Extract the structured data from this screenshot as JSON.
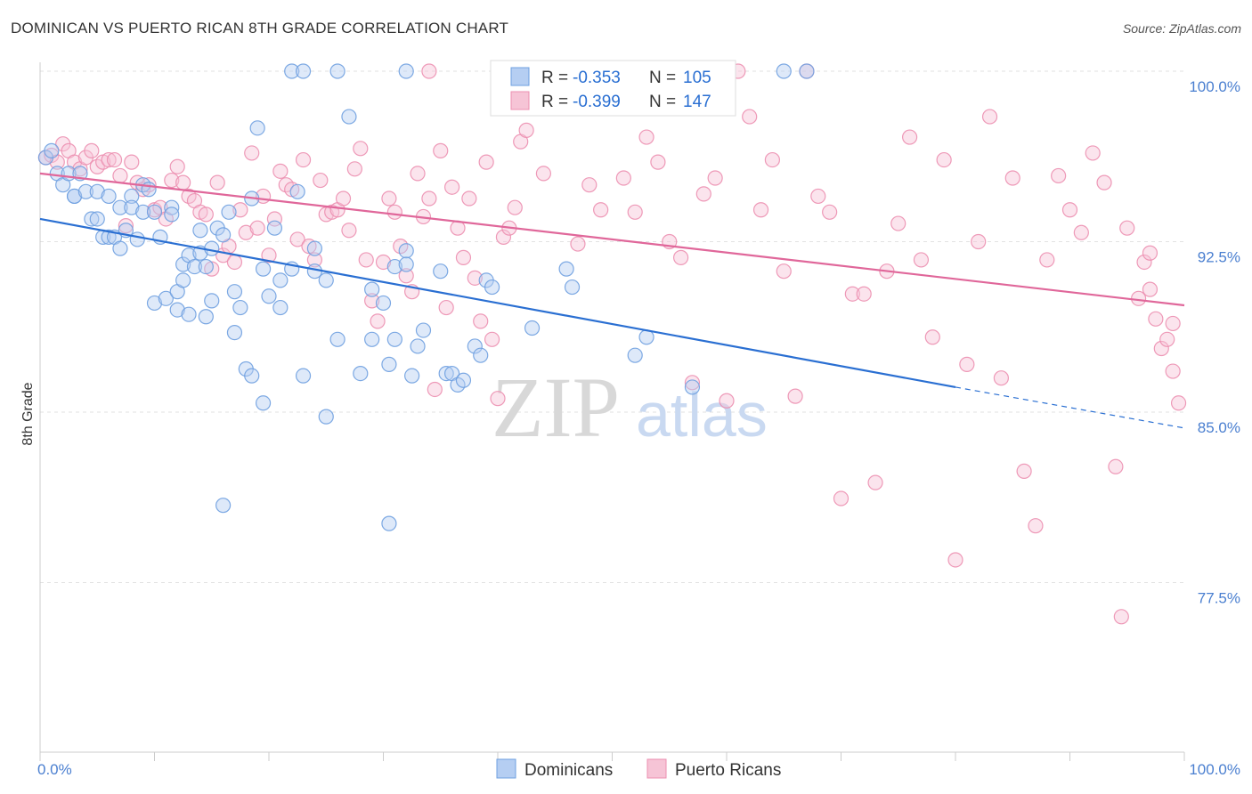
{
  "title": "DOMINICAN VS PUERTO RICAN 8TH GRADE CORRELATION CHART",
  "source": "Source: ZipAtlas.com",
  "watermark": {
    "zip": "ZIP",
    "atlas": "atlas"
  },
  "colors": {
    "blue": "#6fa0e0",
    "blue_fill": "#b5cef2",
    "blue_line": "#2a6fd2",
    "pink": "#ec8fb0",
    "pink_fill": "#f6c4d6",
    "pink_line": "#e0679a",
    "tick": "#4a7fd0"
  },
  "chart_data": {
    "type": "scatter",
    "title": "DOMINICAN VS PUERTO RICAN 8TH GRADE CORRELATION CHART",
    "xlabel": "",
    "ylabel": "8th Grade",
    "xlim": [
      0,
      100
    ],
    "ylim": [
      71.0,
      101.5
    ],
    "x_tick_labels": [
      "0.0%",
      "100.0%"
    ],
    "y_ticks": [
      {
        "value": 100.0,
        "label": "100.0%"
      },
      {
        "value": 92.5,
        "label": "92.5%"
      },
      {
        "value": 85.0,
        "label": "85.0%"
      },
      {
        "value": 77.5,
        "label": "77.5%"
      }
    ],
    "grid": true,
    "legend_position": "bottom",
    "stats_box": [
      {
        "series": "Dominicans",
        "r_label": "R =",
        "r": "-0.353",
        "n_label": "N =",
        "n": "105"
      },
      {
        "series": "Puerto Ricans",
        "r_label": "R =",
        "r": "-0.399",
        "n_label": "N =",
        "n": "147"
      }
    ],
    "series": [
      {
        "name": "Dominicans",
        "trend": {
          "x": [
            0,
            80
          ],
          "y": [
            93.5,
            86.1
          ],
          "dashed_to": [
            100,
            84.3
          ]
        },
        "points": [
          [
            0.5,
            96.2
          ],
          [
            1,
            96.5
          ],
          [
            1.5,
            95.5
          ],
          [
            2,
            95
          ],
          [
            2.5,
            95.5
          ],
          [
            3,
            94.5
          ],
          [
            3.5,
            95.5
          ],
          [
            3,
            94.5
          ],
          [
            4,
            94.7
          ],
          [
            4.5,
            93.5
          ],
          [
            5,
            94.7
          ],
          [
            5,
            93.5
          ],
          [
            5.5,
            92.7
          ],
          [
            6,
            92.7
          ],
          [
            6,
            94.5
          ],
          [
            6.5,
            92.7
          ],
          [
            7,
            92.2
          ],
          [
            7,
            94
          ],
          [
            7.5,
            93
          ],
          [
            8,
            94.5
          ],
          [
            8,
            94
          ],
          [
            8.5,
            92.6
          ],
          [
            9,
            95
          ],
          [
            9,
            93.8
          ],
          [
            9.5,
            94.8
          ],
          [
            10,
            93.8
          ],
          [
            10,
            89.8
          ],
          [
            10.5,
            92.7
          ],
          [
            11,
            90
          ],
          [
            11.5,
            94
          ],
          [
            11.5,
            93.7
          ],
          [
            12,
            90.3
          ],
          [
            12,
            89.5
          ],
          [
            12.5,
            90.8
          ],
          [
            12.5,
            91.5
          ],
          [
            13,
            89.3
          ],
          [
            13,
            91.9
          ],
          [
            13.5,
            91.4
          ],
          [
            14,
            93
          ],
          [
            14,
            92
          ],
          [
            14.5,
            91.4
          ],
          [
            14.5,
            89.2
          ],
          [
            15,
            89.9
          ],
          [
            15,
            92.2
          ],
          [
            15.5,
            93.1
          ],
          [
            16,
            92.8
          ],
          [
            16,
            80.9
          ],
          [
            16.5,
            93.8
          ],
          [
            17,
            90.3
          ],
          [
            17,
            88.5
          ],
          [
            17.5,
            89.6
          ],
          [
            18,
            86.9
          ],
          [
            18.5,
            94.4
          ],
          [
            18.5,
            86.6
          ],
          [
            19,
            97.5
          ],
          [
            19.5,
            91.3
          ],
          [
            19.5,
            85.4
          ],
          [
            20,
            90.1
          ],
          [
            20.5,
            93.1
          ],
          [
            21,
            90.8
          ],
          [
            21,
            89.6
          ],
          [
            22,
            91.3
          ],
          [
            22.5,
            94.7
          ],
          [
            23,
            86.6
          ],
          [
            24,
            91.2
          ],
          [
            24,
            92.2
          ],
          [
            25,
            90.8
          ],
          [
            25,
            84.8
          ],
          [
            26,
            88.2
          ],
          [
            27,
            98
          ],
          [
            28,
            86.7
          ],
          [
            29,
            90.4
          ],
          [
            29,
            88.2
          ],
          [
            30,
            89.8
          ],
          [
            30.5,
            87.1
          ],
          [
            31,
            88.2
          ],
          [
            31,
            91.4
          ],
          [
            32,
            92.1
          ],
          [
            32,
            91.5
          ],
          [
            32.5,
            86.6
          ],
          [
            33,
            87.9
          ],
          [
            33.5,
            88.6
          ],
          [
            35,
            91.2
          ],
          [
            35.5,
            86.7
          ],
          [
            36,
            86.7
          ],
          [
            36.5,
            86.2
          ],
          [
            37,
            86.4
          ],
          [
            38,
            87.9
          ],
          [
            38.5,
            87.5
          ],
          [
            39,
            90.8
          ],
          [
            39.5,
            90.5
          ],
          [
            43,
            88.7
          ],
          [
            46,
            91.3
          ],
          [
            46.5,
            90.5
          ],
          [
            52,
            87.5
          ],
          [
            53,
            88.3
          ],
          [
            57,
            86.1
          ],
          [
            22,
            100
          ],
          [
            23,
            100
          ],
          [
            26,
            100
          ],
          [
            32,
            100
          ],
          [
            65,
            100
          ],
          [
            67,
            100
          ],
          [
            30.5,
            80.1
          ]
        ]
      },
      {
        "name": "Puerto Ricans",
        "trend": {
          "x": [
            0,
            100
          ],
          "y": [
            95.5,
            89.7
          ]
        },
        "points": [
          [
            0.5,
            96.2
          ],
          [
            1,
            96.3
          ],
          [
            1.5,
            96
          ],
          [
            2,
            96.8
          ],
          [
            2.5,
            96.5
          ],
          [
            3,
            96
          ],
          [
            3.5,
            95.7
          ],
          [
            4,
            96.2
          ],
          [
            4.5,
            96.5
          ],
          [
            5,
            95.8
          ],
          [
            5.5,
            96
          ],
          [
            6,
            96.1
          ],
          [
            6.5,
            96.1
          ],
          [
            7,
            95.4
          ],
          [
            7.5,
            93.2
          ],
          [
            8,
            96
          ],
          [
            8.5,
            95.1
          ],
          [
            9,
            94.8
          ],
          [
            9.5,
            95
          ],
          [
            10,
            93.9
          ],
          [
            10.5,
            94
          ],
          [
            11,
            93.5
          ],
          [
            11.5,
            95.2
          ],
          [
            12,
            95.8
          ],
          [
            12.5,
            95.1
          ],
          [
            13,
            94.5
          ],
          [
            13.5,
            94.3
          ],
          [
            14,
            93.8
          ],
          [
            14.5,
            93.7
          ],
          [
            15,
            91.3
          ],
          [
            15.5,
            95.1
          ],
          [
            16,
            91.9
          ],
          [
            16.5,
            92.3
          ],
          [
            17,
            91.6
          ],
          [
            17.5,
            93.9
          ],
          [
            18,
            92.9
          ],
          [
            18.5,
            96.4
          ],
          [
            19,
            93.1
          ],
          [
            19.5,
            94.5
          ],
          [
            20,
            91.9
          ],
          [
            20.5,
            93.5
          ],
          [
            21,
            95.6
          ],
          [
            21.5,
            95
          ],
          [
            22,
            94.8
          ],
          [
            22.5,
            92.6
          ],
          [
            23,
            96.1
          ],
          [
            23.5,
            92.3
          ],
          [
            24,
            91.7
          ],
          [
            24.5,
            95.2
          ],
          [
            25,
            93.7
          ],
          [
            25.5,
            93.8
          ],
          [
            26,
            93.9
          ],
          [
            26.5,
            94.4
          ],
          [
            27,
            93
          ],
          [
            27.5,
            95.7
          ],
          [
            28,
            96.6
          ],
          [
            28.5,
            91.7
          ],
          [
            29,
            89.9
          ],
          [
            29.5,
            89
          ],
          [
            30,
            91.6
          ],
          [
            30.5,
            94.4
          ],
          [
            31,
            93.8
          ],
          [
            31.5,
            92.3
          ],
          [
            32,
            91
          ],
          [
            32.5,
            90.3
          ],
          [
            33,
            95.5
          ],
          [
            33.5,
            93.6
          ],
          [
            34,
            94.4
          ],
          [
            34.5,
            86
          ],
          [
            35,
            96.5
          ],
          [
            35.5,
            89.6
          ],
          [
            36,
            94.9
          ],
          [
            36.5,
            93.1
          ],
          [
            37,
            91.8
          ],
          [
            37.5,
            94.4
          ],
          [
            38,
            90.9
          ],
          [
            38.5,
            89
          ],
          [
            39,
            96
          ],
          [
            39.5,
            88.2
          ],
          [
            40,
            85.6
          ],
          [
            40.5,
            92.7
          ],
          [
            41,
            93.1
          ],
          [
            41.5,
            94
          ],
          [
            42,
            96.9
          ],
          [
            42.5,
            97.4
          ],
          [
            43,
            100
          ],
          [
            44,
            95.5
          ],
          [
            45,
            100
          ],
          [
            46,
            100
          ],
          [
            47,
            92.4
          ],
          [
            48,
            95
          ],
          [
            49,
            93.9
          ],
          [
            50,
            100
          ],
          [
            51,
            95.3
          ],
          [
            52,
            93.8
          ],
          [
            53,
            97.1
          ],
          [
            54,
            96
          ],
          [
            55,
            92.5
          ],
          [
            56,
            91.8
          ],
          [
            57,
            86.3
          ],
          [
            58,
            94.6
          ],
          [
            59,
            95.3
          ],
          [
            60,
            85.5
          ],
          [
            61,
            100
          ],
          [
            62,
            98
          ],
          [
            63,
            93.9
          ],
          [
            64,
            96.1
          ],
          [
            65,
            91.2
          ],
          [
            66,
            85.7
          ],
          [
            67,
            100
          ],
          [
            68,
            94.5
          ],
          [
            69,
            93.8
          ],
          [
            70,
            81.2
          ],
          [
            71,
            90.2
          ],
          [
            72,
            90.2
          ],
          [
            73,
            81.9
          ],
          [
            74,
            91.2
          ],
          [
            75,
            93.3
          ],
          [
            76,
            97.1
          ],
          [
            77,
            91.7
          ],
          [
            78,
            88.3
          ],
          [
            79,
            96.1
          ],
          [
            80,
            78.5
          ],
          [
            81,
            87.1
          ],
          [
            82,
            92.5
          ],
          [
            83,
            98
          ],
          [
            84,
            86.5
          ],
          [
            85,
            95.3
          ],
          [
            86,
            82.4
          ],
          [
            87,
            80
          ],
          [
            88,
            91.7
          ],
          [
            89,
            95.4
          ],
          [
            90,
            93.9
          ],
          [
            91,
            92.9
          ],
          [
            92,
            96.4
          ],
          [
            93,
            95.1
          ],
          [
            94,
            82.6
          ],
          [
            94.5,
            76
          ],
          [
            95,
            93.1
          ],
          [
            96,
            90
          ],
          [
            96.5,
            91.6
          ],
          [
            97,
            92
          ],
          [
            97.5,
            89.1
          ],
          [
            98,
            87.8
          ],
          [
            98.5,
            88.2
          ],
          [
            99,
            86.8
          ],
          [
            99.5,
            85.4
          ],
          [
            97,
            90.4
          ],
          [
            99,
            88.9
          ],
          [
            34,
            100
          ]
        ]
      }
    ]
  },
  "legend": [
    {
      "label": "Dominicans"
    },
    {
      "label": "Puerto Ricans"
    }
  ]
}
